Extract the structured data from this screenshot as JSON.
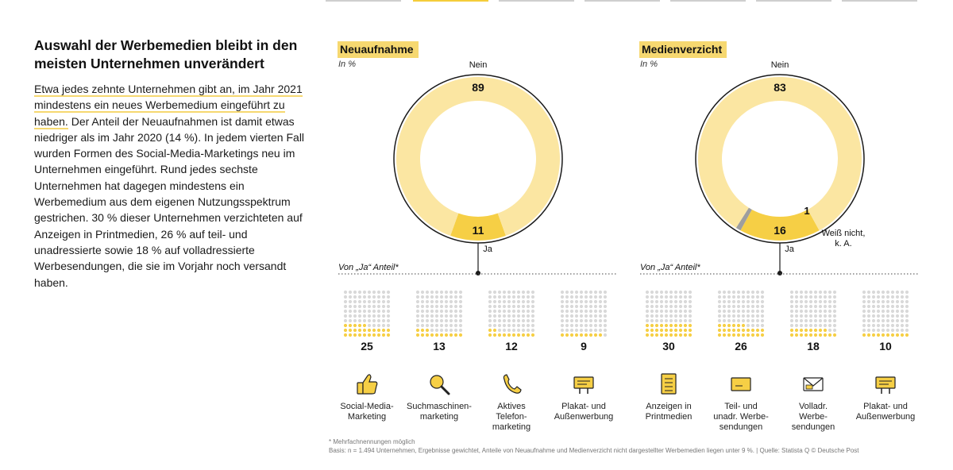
{
  "intro": {
    "title": "Auswahl der Werbemedien bleibt in den meisten Unternehmen unverändert",
    "paragraph_highlight": "Etwa jedes zehnte Unternehmen gibt an, im Jahr 2021 mindestens ein neues Werbemedium ein­geführt zu haben.",
    "paragraph_rest": " Der Anteil der Neuaufnahmen ist damit etwas niedriger als im Jahr 2020 (14 %). In jedem vierten Fall wurden Formen des Social-Media-Marketings neu im Unternehmen eingeführt. Rund jedes sechste Unternehmen hat dagegen mindestens ein Werbemedium aus dem eigenen Nutzungsspektrum gestrichen. 30 % dieser Unter­nehmen verzichteten auf Anzeigen in Printmedien, 26 % auf teil- und unadressierte sowie 18 % auf volladressierte Werbesendungen, die sie im Vorjahr noch versandt haben."
  },
  "colors": {
    "light_yellow": "#fbe6a2",
    "mid_yellow": "#f6cf45",
    "grey": "#9e9e9e",
    "dot_grey": "#d9d9d9",
    "dot_yellow": "#f6cf45"
  },
  "panels": {
    "left": {
      "title": "Neuaufnahme",
      "unit": "In %",
      "sub_label": "Von „Ja“ Anteil*",
      "donut": {
        "nein_label": "Nein",
        "ja_label": "Ja",
        "nein": 89,
        "ja": 11
      },
      "channels": [
        {
          "value": 25,
          "label": "Social-Media-\nMarketing",
          "icon": "thumbs-up-icon"
        },
        {
          "value": 13,
          "label": "Suchmaschinen-\nmarketing",
          "icon": "magnifier-icon"
        },
        {
          "value": 12,
          "label": "Aktives\nTelefon-\nmarketing",
          "icon": "phone-icon"
        },
        {
          "value": 9,
          "label": "Plakat- und\nAußenwerbung",
          "icon": "billboard-icon"
        }
      ]
    },
    "right": {
      "title": "Medienverzicht",
      "unit": "In %",
      "sub_label": "Von „Ja“ Anteil*",
      "donut": {
        "nein_label": "Nein",
        "ja_label": "Ja",
        "unknown_label": "Weiß nicht,\nk. A.",
        "nein": 83,
        "ja": 16,
        "unknown": 1
      },
      "channels": [
        {
          "value": 30,
          "label": "Anzeigen in\nPrintmedien",
          "icon": "newspaper-icon"
        },
        {
          "value": 26,
          "label": "Teil- und\nunadr. Werbe-\nsendungen",
          "icon": "envelope-icon"
        },
        {
          "value": 18,
          "label": "Volladr.\nWerbe-\nsendungen",
          "icon": "addressed-letter-icon"
        },
        {
          "value": 10,
          "label": "Plakat- und\nAußenwerbung",
          "icon": "billboard-icon"
        }
      ]
    }
  },
  "chart_data": [
    {
      "type": "pie",
      "title": "Neuaufnahme",
      "unit": "In %",
      "categories": [
        "Nein",
        "Ja"
      ],
      "values": [
        89,
        11
      ]
    },
    {
      "type": "bar",
      "title": "Von „Ja“ Anteil*",
      "categories": [
        "Social-Media-Marketing",
        "Suchmaschinenmarketing",
        "Aktives Telefonmarketing",
        "Plakat- und Außenwerbung"
      ],
      "values": [
        25,
        13,
        12,
        9
      ]
    },
    {
      "type": "pie",
      "title": "Medienverzicht",
      "unit": "In %",
      "categories": [
        "Nein",
        "Ja",
        "Weiß nicht, k. A."
      ],
      "values": [
        83,
        16,
        1
      ]
    },
    {
      "type": "bar",
      "title": "Von „Ja“ Anteil*",
      "categories": [
        "Anzeigen in Printmedien",
        "Teil- und unadr. Werbesendungen",
        "Volladr. Werbesendungen",
        "Plakat- und Außenwerbung"
      ],
      "values": [
        30,
        26,
        18,
        10
      ]
    }
  ],
  "footnote": {
    "line1": "* Mehrfachnennungen möglich",
    "line2": "Basis: n = 1.494 Unternehmen, Ergebnisse gewichtet, Anteile von Neuaufnahme und Medienverzicht nicht dargestellter Werbemedien liegen unter 9 %. | Quelle: Statista Q © Deutsche Post"
  }
}
